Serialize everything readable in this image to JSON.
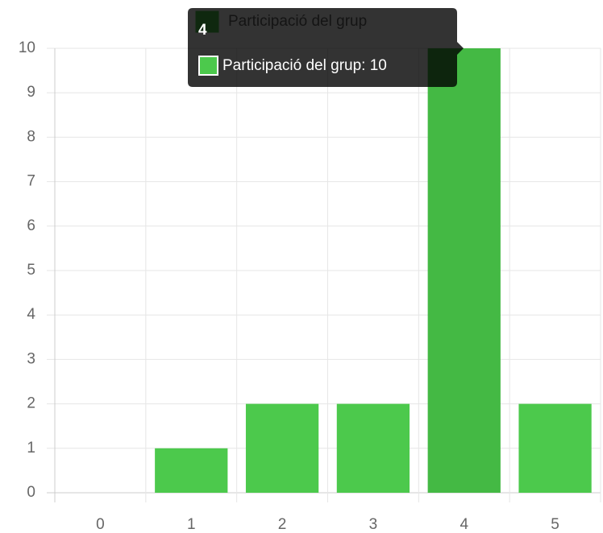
{
  "chart_data": {
    "type": "bar",
    "categories": [
      "0",
      "1",
      "2",
      "3",
      "4",
      "5"
    ],
    "series": [
      {
        "name": "Participació del grup",
        "color": "#4cc94c",
        "hover_color": "#44b944",
        "values": [
          0,
          1,
          2,
          2,
          10,
          2
        ]
      }
    ],
    "ylim": [
      0,
      10
    ],
    "yticks": [
      0,
      1,
      2,
      3,
      4,
      5,
      6,
      7,
      8,
      9,
      10
    ],
    "grid": true,
    "tooltip": {
      "title": "4",
      "text": "Participació del grup: 10",
      "index": 4
    }
  }
}
